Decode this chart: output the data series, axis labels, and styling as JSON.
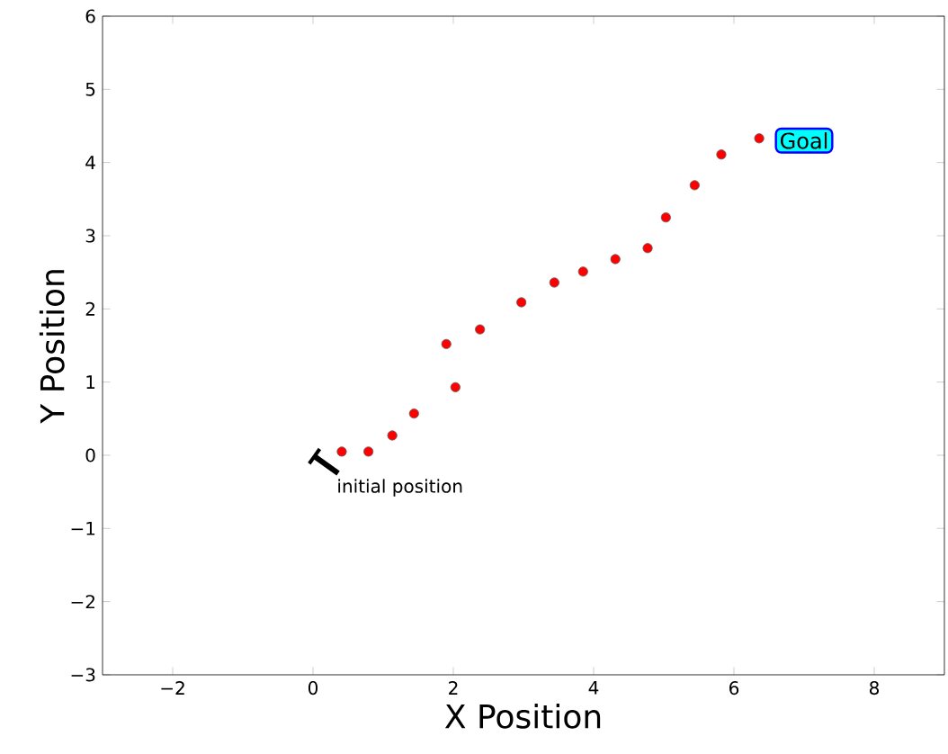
{
  "chart_data": {
    "type": "scatter",
    "xlabel": "X Position",
    "ylabel": "Y Position",
    "x": [
      0.41,
      0.79,
      1.13,
      1.44,
      1.9,
      2.03,
      2.38,
      2.97,
      3.44,
      3.85,
      4.31,
      4.77,
      5.03,
      5.44,
      5.82,
      6.36
    ],
    "series": [
      {
        "color": "#ff0000",
        "values": [
          0.05,
          0.05,
          0.27,
          0.57,
          1.52,
          0.93,
          1.72,
          2.09,
          2.36,
          2.51,
          2.68,
          2.83,
          3.25,
          3.69,
          4.11,
          4.33
        ]
      }
    ],
    "marker": "circle",
    "xlim": [
      -3,
      9
    ],
    "ylim": [
      -3,
      6
    ],
    "xticks": [
      {
        "value": -2,
        "label": "−2"
      },
      0,
      2,
      4,
      6,
      8
    ],
    "yticks": [
      {
        "value": -3,
        "label": "−3"
      },
      {
        "value": -2,
        "label": "−2"
      },
      {
        "value": -1,
        "label": "−1"
      },
      0,
      1,
      2,
      3,
      4,
      5,
      6
    ],
    "annotations": [
      {
        "text": "initial position",
        "x": 0,
        "y": 0
      },
      {
        "text": "Goal",
        "x": 7,
        "y": 4.3
      }
    ]
  }
}
